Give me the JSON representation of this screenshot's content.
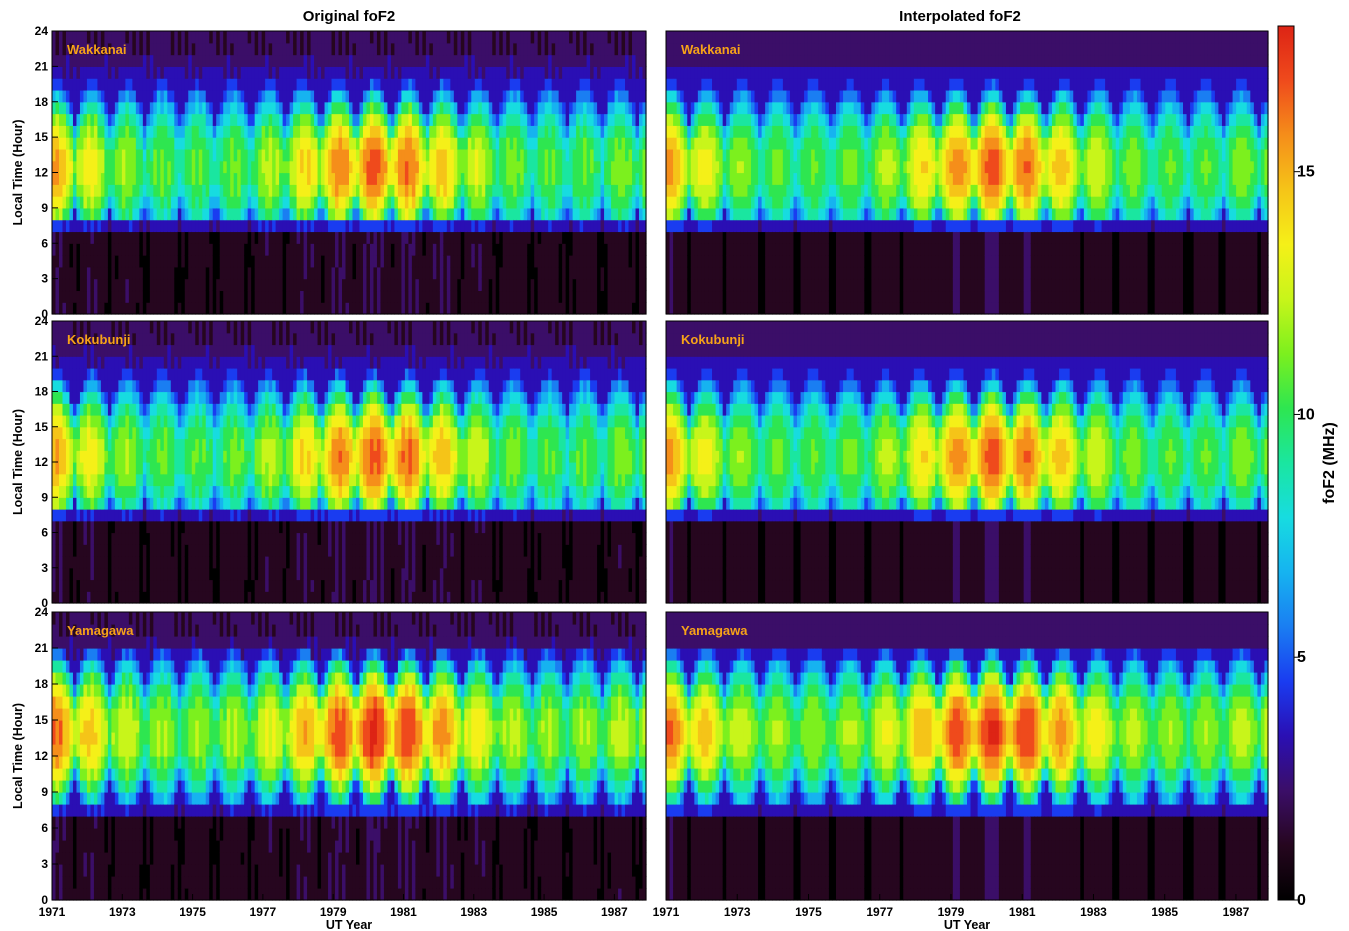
{
  "chart_data": [
    {
      "type": "heatmap",
      "title": "Original foF2",
      "xlabel": "UT Year",
      "ylabel": "Local Time (Hour)",
      "xlim": [
        1971,
        1987.9
      ],
      "ylim": [
        0,
        24
      ],
      "x_ticks": [
        "1971",
        "1973",
        "1975",
        "1977",
        "1979",
        "1981",
        "1983",
        "1985",
        "1987"
      ],
      "y_ticks": [
        "0",
        "3",
        "6",
        "9",
        "12",
        "15",
        "18",
        "21",
        "24"
      ],
      "stations": [
        "Wakkanai",
        "Kokubunji",
        "Yamagawa"
      ],
      "value_units": "MHz",
      "solar_max_years": [
        1979,
        1980,
        1981,
        1982
      ],
      "peak_foF2_MHz": {
        "Wakkanai": 17.5,
        "Kokubunji": 17.5,
        "Yamagawa": 18
      }
    },
    {
      "type": "heatmap",
      "title": "Interpolated foF2",
      "xlabel": "UT Year",
      "ylabel": "",
      "xlim": [
        1971,
        1987.9
      ],
      "ylim": [
        0,
        24
      ],
      "x_ticks": [
        "1971",
        "1973",
        "1975",
        "1977",
        "1979",
        "1981",
        "1983",
        "1985",
        "1987"
      ],
      "stations": [
        "Wakkanai",
        "Kokubunji",
        "Yamagawa"
      ],
      "value_units": "MHz"
    }
  ],
  "colorbar": {
    "label": "foF2 (MHz)",
    "range": [
      0,
      18
    ],
    "ticks": [
      "0",
      "5",
      "10",
      "15"
    ],
    "colormap": [
      "#000000",
      "#26061f",
      "#3b0e68",
      "#2a0fb4",
      "#1a3cf0",
      "#1a7ef2",
      "#16b3f0",
      "#17dce0",
      "#1ae6a0",
      "#2ee650",
      "#7cf01e",
      "#c8f51a",
      "#f5f018",
      "#f5c418",
      "#f58e1a",
      "#ef4a1c",
      "#dd2415"
    ]
  }
}
